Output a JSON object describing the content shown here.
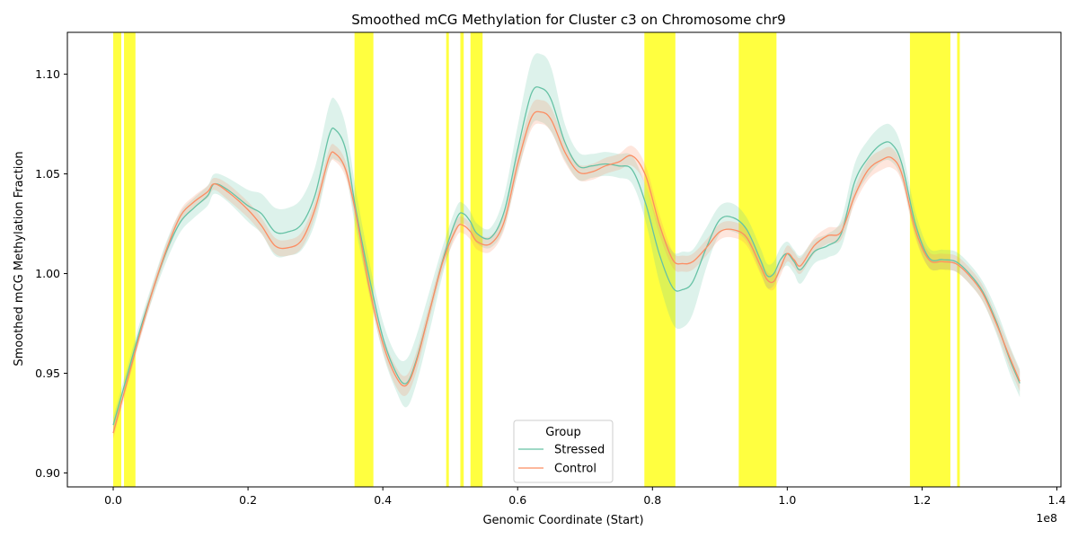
{
  "chart_data": {
    "type": "line",
    "title": "Smoothed mCG Methylation for Cluster c3 on Chromosome chr9",
    "xlabel": "Genomic Coordinate (Start)",
    "ylabel": "Smoothed mCG Methylation Fraction",
    "x_offset_label": "1e8",
    "xlim": [
      -0.068,
      1.406
    ],
    "ylim": [
      0.893,
      1.121
    ],
    "x_ticks": [
      0.0,
      0.2,
      0.4,
      0.6,
      0.8,
      1.0,
      1.2,
      1.4
    ],
    "x_tick_labels": [
      "0.0",
      "0.2",
      "0.4",
      "0.6",
      "0.8",
      "1.0",
      "1.2",
      "1.4"
    ],
    "y_ticks": [
      0.9,
      0.95,
      1.0,
      1.05,
      1.1
    ],
    "y_tick_labels": [
      "0.90",
      "0.95",
      "1.00",
      "1.05",
      "1.10"
    ],
    "grid": false,
    "legend": {
      "title": "Group",
      "placement": "lower-center"
    },
    "highlight_color": "#ffff00",
    "highlight_regions": [
      [
        0.0,
        0.012
      ],
      [
        0.016,
        0.033
      ],
      [
        0.358,
        0.386
      ],
      [
        0.494,
        0.498
      ],
      [
        0.515,
        0.52
      ],
      [
        0.53,
        0.548
      ],
      [
        0.788,
        0.834
      ],
      [
        0.928,
        0.984
      ],
      [
        1.182,
        1.242
      ],
      [
        1.252,
        1.256
      ]
    ],
    "series": [
      {
        "name": "Stressed",
        "color": "#66c2a5",
        "x": [
          0.0,
          0.02,
          0.04,
          0.06,
          0.08,
          0.1,
          0.12,
          0.14,
          0.15,
          0.17,
          0.2,
          0.22,
          0.24,
          0.26,
          0.28,
          0.3,
          0.32,
          0.33,
          0.345,
          0.36,
          0.38,
          0.4,
          0.42,
          0.435,
          0.45,
          0.47,
          0.49,
          0.51,
          0.52,
          0.53,
          0.54,
          0.56,
          0.58,
          0.6,
          0.62,
          0.635,
          0.65,
          0.67,
          0.69,
          0.71,
          0.73,
          0.75,
          0.77,
          0.79,
          0.81,
          0.83,
          0.845,
          0.86,
          0.88,
          0.9,
          0.92,
          0.94,
          0.96,
          0.97,
          0.98,
          0.99,
          1.0,
          1.01,
          1.02,
          1.04,
          1.06,
          1.08,
          1.1,
          1.12,
          1.14,
          1.155,
          1.17,
          1.19,
          1.21,
          1.23,
          1.25,
          1.27,
          1.29,
          1.31,
          1.33,
          1.345
        ],
        "values": [
          0.924,
          0.948,
          0.972,
          0.993,
          1.012,
          1.026,
          1.033,
          1.039,
          1.045,
          1.042,
          1.034,
          1.03,
          1.021,
          1.021,
          1.025,
          1.04,
          1.069,
          1.072,
          1.062,
          1.032,
          0.998,
          0.968,
          0.95,
          0.945,
          0.957,
          0.982,
          1.008,
          1.028,
          1.03,
          1.026,
          1.02,
          1.018,
          1.031,
          1.062,
          1.09,
          1.093,
          1.087,
          1.066,
          1.054,
          1.054,
          1.055,
          1.054,
          1.052,
          1.035,
          1.01,
          0.993,
          0.992,
          0.996,
          1.013,
          1.027,
          1.028,
          1.022,
          1.007,
          0.999,
          1.0,
          1.007,
          1.01,
          1.006,
          1.002,
          1.011,
          1.014,
          1.02,
          1.046,
          1.058,
          1.065,
          1.065,
          1.055,
          1.025,
          1.008,
          1.007,
          1.006,
          1.0,
          0.991,
          0.976,
          0.957,
          0.945
        ],
        "band_halfwidth": [
          0.004,
          0.004,
          0.004,
          0.004,
          0.005,
          0.005,
          0.005,
          0.005,
          0.005,
          0.006,
          0.008,
          0.01,
          0.012,
          0.012,
          0.013,
          0.014,
          0.015,
          0.015,
          0.012,
          0.01,
          0.008,
          0.008,
          0.009,
          0.012,
          0.012,
          0.01,
          0.007,
          0.006,
          0.005,
          0.005,
          0.005,
          0.005,
          0.008,
          0.012,
          0.016,
          0.017,
          0.016,
          0.009,
          0.007,
          0.006,
          0.006,
          0.006,
          0.007,
          0.009,
          0.014,
          0.018,
          0.019,
          0.016,
          0.01,
          0.007,
          0.007,
          0.006,
          0.006,
          0.006,
          0.006,
          0.006,
          0.006,
          0.006,
          0.007,
          0.006,
          0.006,
          0.007,
          0.009,
          0.009,
          0.009,
          0.009,
          0.008,
          0.006,
          0.005,
          0.005,
          0.005,
          0.005,
          0.005,
          0.006,
          0.007,
          0.007
        ]
      },
      {
        "name": "Control",
        "color": "#fc8d62",
        "x": [
          0.0,
          0.02,
          0.04,
          0.06,
          0.08,
          0.1,
          0.12,
          0.14,
          0.15,
          0.17,
          0.2,
          0.22,
          0.24,
          0.26,
          0.28,
          0.3,
          0.32,
          0.33,
          0.345,
          0.36,
          0.38,
          0.4,
          0.42,
          0.435,
          0.45,
          0.47,
          0.49,
          0.51,
          0.52,
          0.53,
          0.54,
          0.56,
          0.58,
          0.6,
          0.62,
          0.635,
          0.65,
          0.67,
          0.69,
          0.71,
          0.73,
          0.75,
          0.77,
          0.79,
          0.81,
          0.83,
          0.845,
          0.86,
          0.88,
          0.9,
          0.92,
          0.94,
          0.96,
          0.97,
          0.98,
          0.99,
          1.0,
          1.01,
          1.02,
          1.04,
          1.06,
          1.08,
          1.1,
          1.12,
          1.14,
          1.155,
          1.17,
          1.19,
          1.21,
          1.23,
          1.25,
          1.27,
          1.29,
          1.31,
          1.33,
          1.345
        ],
        "values": [
          0.92,
          0.945,
          0.97,
          0.993,
          1.013,
          1.029,
          1.036,
          1.041,
          1.045,
          1.041,
          1.032,
          1.024,
          1.014,
          1.013,
          1.017,
          1.033,
          1.058,
          1.06,
          1.052,
          1.03,
          0.993,
          0.965,
          0.948,
          0.944,
          0.956,
          0.982,
          1.007,
          1.023,
          1.024,
          1.021,
          1.016,
          1.015,
          1.026,
          1.055,
          1.078,
          1.081,
          1.077,
          1.061,
          1.051,
          1.051,
          1.054,
          1.056,
          1.059,
          1.049,
          1.025,
          1.007,
          1.005,
          1.006,
          1.013,
          1.021,
          1.022,
          1.018,
          1.004,
          0.997,
          0.996,
          1.003,
          1.01,
          1.007,
          1.004,
          1.014,
          1.019,
          1.021,
          1.039,
          1.052,
          1.057,
          1.058,
          1.05,
          1.022,
          1.007,
          1.006,
          1.005,
          0.999,
          0.99,
          0.975,
          0.958,
          0.946
        ],
        "band_halfwidth": [
          0.003,
          0.003,
          0.003,
          0.003,
          0.003,
          0.003,
          0.003,
          0.003,
          0.003,
          0.004,
          0.004,
          0.004,
          0.004,
          0.004,
          0.004,
          0.004,
          0.004,
          0.004,
          0.004,
          0.004,
          0.004,
          0.004,
          0.005,
          0.005,
          0.005,
          0.004,
          0.004,
          0.004,
          0.004,
          0.004,
          0.004,
          0.004,
          0.004,
          0.005,
          0.006,
          0.006,
          0.006,
          0.005,
          0.004,
          0.004,
          0.004,
          0.004,
          0.005,
          0.005,
          0.005,
          0.004,
          0.004,
          0.004,
          0.004,
          0.004,
          0.004,
          0.004,
          0.004,
          0.004,
          0.004,
          0.004,
          0.004,
          0.004,
          0.004,
          0.004,
          0.004,
          0.004,
          0.004,
          0.005,
          0.005,
          0.005,
          0.004,
          0.004,
          0.004,
          0.004,
          0.004,
          0.004,
          0.004,
          0.004,
          0.005,
          0.005
        ]
      }
    ]
  }
}
